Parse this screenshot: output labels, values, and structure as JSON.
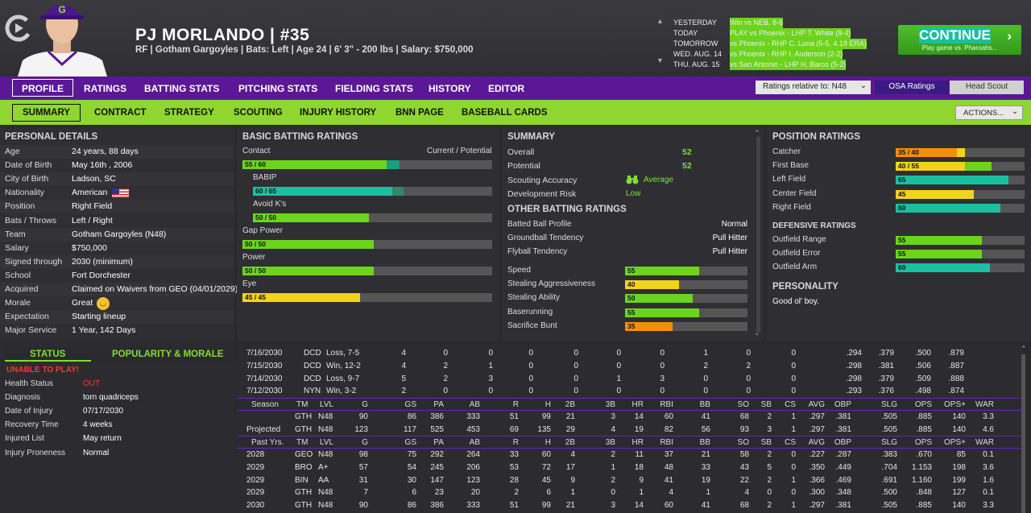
{
  "player": {
    "name": "PJ MORLANDO  |  #35",
    "subline": "RF | Gotham Gargoyles  |  Bats: Left  |  Age 24  |  6' 3\" - 200 lbs  |  Salary: $750,000"
  },
  "schedule": [
    {
      "day": "YESTERDAY",
      "game": "Win vs NEB, 8-6"
    },
    {
      "day": "TODAY",
      "game": "PLAY vs Phoenix - LHP T. White (8-4)"
    },
    {
      "day": "TOMORROW",
      "game": "vs Phoenix - RHP C. Luna (5-5, 4.19 ERA)"
    },
    {
      "day": "WED. AUG. 14",
      "game": "vs Phoenix - RHP I. Anderson (2-2)"
    },
    {
      "day": "THU. AUG. 15",
      "game": "vs San Antonio - LHP H. Barco (5-2)"
    }
  ],
  "continue": {
    "label": "CONTINUE",
    "sub": "Play game vs. Pharoahs..."
  },
  "nav": {
    "tabs": [
      "PROFILE",
      "RATINGS",
      "BATTING STATS",
      "PITCHING STATS",
      "FIELDING STATS",
      "HISTORY",
      "EDITOR"
    ],
    "ratings_relative": "Ratings relative to: N48",
    "osa": "OSA Ratings",
    "head_scout": "Head Scout"
  },
  "subnav": {
    "tabs": [
      "SUMMARY",
      "CONTRACT",
      "STRATEGY",
      "SCOUTING",
      "INJURY HISTORY",
      "BNN PAGE",
      "BASEBALL CARDS"
    ],
    "actions": "ACTIONS..."
  },
  "personal": {
    "title": "PERSONAL DETAILS",
    "rows": [
      {
        "k": "Age",
        "v": "24 years, 88 days"
      },
      {
        "k": "Date of Birth",
        "v": "May 16th , 2006"
      },
      {
        "k": "City of Birth",
        "v": "Ladson, SC"
      },
      {
        "k": "Nationality",
        "v": "American"
      },
      {
        "k": "Position",
        "v": "Right Field"
      },
      {
        "k": "Bats / Throws",
        "v": "Left / Right"
      },
      {
        "k": "Team",
        "v": "Gotham Gargoyles (N48)"
      },
      {
        "k": "Salary",
        "v": "$750,000"
      },
      {
        "k": "Signed through",
        "v": "2030 (minimum)"
      },
      {
        "k": "School",
        "v": "Fort Dorchester"
      },
      {
        "k": "Acquired",
        "v": "Claimed on Waivers from GEO (04/01/2029)"
      },
      {
        "k": "Morale",
        "v": "Great"
      },
      {
        "k": "Expectation",
        "v": "Starting lineup"
      },
      {
        "k": "Major Service",
        "v": "1 Year, 142 Days"
      }
    ]
  },
  "status": {
    "tab1": "STATUS",
    "tab2": "POPULARITY & MORALE",
    "alert": "UNABLE TO PLAY!",
    "rows": [
      {
        "k": "Health Status",
        "v": "OUT"
      },
      {
        "k": "Diagnosis",
        "v": "torn quadriceps"
      },
      {
        "k": "Date of Injury",
        "v": "07/17/2030"
      },
      {
        "k": "Recovery Time",
        "v": "4 weeks"
      },
      {
        "k": "Injured List",
        "v": "May return"
      },
      {
        "k": "Injury Proneness",
        "v": "Normal"
      }
    ]
  },
  "batting": {
    "title": "BASIC BATTING RATINGS",
    "legend": "Current / Potential",
    "items": [
      {
        "label": "Contact",
        "text": "55 / 60",
        "cur": 55,
        "pot": 60,
        "color": "#6cd41c",
        "pcolor": "#19a080",
        "indent": false
      },
      {
        "label": "BABIP",
        "text": "60 / 65",
        "cur": 60,
        "pot": 65,
        "color": "#19c0a0",
        "pcolor": "#2e8a6a",
        "indent": true
      },
      {
        "label": "Avoid K's",
        "text": "50 / 50",
        "cur": 50,
        "pot": 50,
        "color": "#6cd41c",
        "pcolor": "#6cd41c",
        "indent": true
      },
      {
        "label": "Gap Power",
        "text": "50 / 50",
        "cur": 50,
        "pot": 50,
        "color": "#6cd41c",
        "pcolor": "#6cd41c",
        "indent": false
      },
      {
        "label": "Power",
        "text": "50 / 50",
        "cur": 50,
        "pot": 50,
        "color": "#6cd41c",
        "pcolor": "#6cd41c",
        "indent": false
      },
      {
        "label": "Eye",
        "text": "45 / 45",
        "cur": 45,
        "pot": 45,
        "color": "#f0d41a",
        "pcolor": "#f0d41a",
        "indent": false
      }
    ]
  },
  "summary": {
    "title": "SUMMARY",
    "overall_label": "Overall",
    "overall": "52",
    "potential_label": "Potential",
    "potential": "52",
    "scout_label": "Scouting Accuracy",
    "scout": "Average",
    "dev_label": "Development Risk",
    "dev": "Low",
    "other_title": "OTHER BATTING RATINGS",
    "other": [
      {
        "k": "Batted Ball Profile",
        "v": "Normal"
      },
      {
        "k": "Groundball Tendency",
        "v": "Pull Hitter"
      },
      {
        "k": "Flyball Tendency",
        "v": "Pull Hitter"
      }
    ],
    "bars": [
      {
        "k": "Speed",
        "v": 55,
        "text": "55",
        "color": "#6cd41c"
      },
      {
        "k": "Stealing Aggressiveness",
        "v": 40,
        "text": "40",
        "color": "#f0d41a"
      },
      {
        "k": "Stealing Ability",
        "v": 50,
        "text": "50",
        "color": "#6cd41c"
      },
      {
        "k": "Baserunning",
        "v": 55,
        "text": "55",
        "color": "#6cd41c"
      },
      {
        "k": "Sacrifice Bunt",
        "v": 35,
        "text": "35",
        "color": "#f0900a"
      }
    ]
  },
  "position": {
    "title": "POSITION RATINGS",
    "items": [
      {
        "k": "Catcher",
        "text": "35 / 40",
        "cur": 35,
        "pot": 40,
        "color": "#f0900a",
        "pcolor": "#f0d41a"
      },
      {
        "k": "First Base",
        "text": "40 / 55",
        "cur": 40,
        "pot": 55,
        "color": "#f0d41a",
        "pcolor": "#6cd41c"
      },
      {
        "k": "Left Field",
        "text": "65",
        "cur": 65,
        "pot": 65,
        "color": "#19c0a0",
        "pcolor": "#19c0a0"
      },
      {
        "k": "Center Field",
        "text": "45",
        "cur": 45,
        "pot": 45,
        "color": "#f0d41a",
        "pcolor": "#f0d41a"
      },
      {
        "k": "Right Field",
        "text": "60",
        "cur": 60,
        "pot": 60,
        "color": "#19c0a0",
        "pcolor": "#19c0a0"
      }
    ],
    "def_title": "DEFENSIVE RATINGS",
    "def": [
      {
        "k": "Outfield Range",
        "text": "55",
        "v": 55,
        "color": "#6cd41c"
      },
      {
        "k": "Outfield Error",
        "text": "55",
        "v": 55,
        "color": "#6cd41c"
      },
      {
        "k": "Outfield Arm",
        "text": "60",
        "v": 60,
        "color": "#19c0a0"
      }
    ],
    "personality_title": "PERSONALITY",
    "personality": "Good ol' boy."
  },
  "stats": {
    "cols": [
      "G",
      "GS",
      "PA",
      "AB",
      "R",
      "H",
      "2B",
      "3B",
      "HR",
      "RBI",
      "BB",
      "SO",
      "SB",
      "CS",
      "AVG",
      "OBP",
      "SLG",
      "OPS",
      "OPS+",
      "WAR"
    ],
    "game_rows": [
      [
        "7/16/2030",
        "DCD",
        "Loss, 7-5",
        "4",
        "0",
        "0",
        "0",
        "0",
        "0",
        "0",
        "1",
        "0",
        "0",
        ".294",
        ".379",
        ".500",
        ".879"
      ],
      [
        "7/15/2030",
        "DCD",
        "Win, 12-2",
        "4",
        "2",
        "1",
        "0",
        "0",
        "0",
        "0",
        "2",
        "2",
        "0",
        ".298",
        ".381",
        ".506",
        ".887"
      ],
      [
        "7/14/2030",
        "DCD",
        "Loss, 9-7",
        "5",
        "2",
        "3",
        "0",
        "0",
        "1",
        "3",
        "0",
        "0",
        "0",
        ".298",
        ".379",
        ".509",
        ".888"
      ],
      [
        "7/12/2030",
        "NYN",
        "Win, 3-2",
        "2",
        "0",
        "0",
        "0",
        "0",
        "0",
        "0",
        "0",
        "0",
        "0",
        ".293",
        ".376",
        ".498",
        ".874"
      ]
    ],
    "season_hdr": [
      "Season",
      "TM",
      "LVL"
    ],
    "season_rows": [
      [
        "",
        "GTH",
        "N48",
        "90",
        "86",
        "386",
        "333",
        "51",
        "99",
        "21",
        "3",
        "14",
        "60",
        "41",
        "68",
        "2",
        "1",
        ".297",
        ".381",
        ".505",
        ".885",
        "140",
        "3.3"
      ],
      [
        "Projected",
        "GTH",
        "N48",
        "123",
        "117",
        "525",
        "453",
        "69",
        "135",
        "29",
        "4",
        "19",
        "82",
        "56",
        "93",
        "3",
        "1",
        ".297",
        ".381",
        ".505",
        ".885",
        "140",
        "4.6"
      ]
    ],
    "past_hdr": [
      "Past Yrs.",
      "TM",
      "LVL"
    ],
    "past_rows": [
      [
        "2028",
        "GEO",
        "N48",
        "98",
        "75",
        "292",
        "264",
        "33",
        "60",
        "4",
        "2",
        "11",
        "37",
        "21",
        "58",
        "2",
        "0",
        ".227",
        ".287",
        ".383",
        ".670",
        "85",
        "0.1"
      ],
      [
        "2029",
        "BRO",
        "A+",
        "57",
        "54",
        "245",
        "206",
        "53",
        "72",
        "17",
        "1",
        "18",
        "48",
        "33",
        "43",
        "5",
        "0",
        ".350",
        ".449",
        ".704",
        "1.153",
        "198",
        "3.6"
      ],
      [
        "2029",
        "BIN",
        "AA",
        "31",
        "30",
        "147",
        "123",
        "28",
        "45",
        "9",
        "2",
        "9",
        "41",
        "19",
        "22",
        "2",
        "1",
        ".366",
        ".469",
        ".691",
        "1.160",
        "199",
        "1.6"
      ],
      [
        "2029",
        "GTH",
        "N48",
        "7",
        "6",
        "23",
        "20",
        "2",
        "6",
        "1",
        "0",
        "1",
        "4",
        "1",
        "4",
        "0",
        "0",
        ".300",
        ".348",
        ".500",
        ".848",
        "127",
        "0.1"
      ],
      [
        "2030",
        "GTH",
        "N48",
        "90",
        "86",
        "386",
        "333",
        "51",
        "99",
        "21",
        "3",
        "14",
        "60",
        "41",
        "68",
        "2",
        "1",
        ".297",
        ".381",
        ".505",
        ".885",
        "140",
        "3.3"
      ]
    ]
  },
  "colors": {
    "accent_purple": "#5b1796",
    "accent_green": "#8fd630",
    "alert_red": "#ff3030",
    "good_green": "#7ee030"
  }
}
